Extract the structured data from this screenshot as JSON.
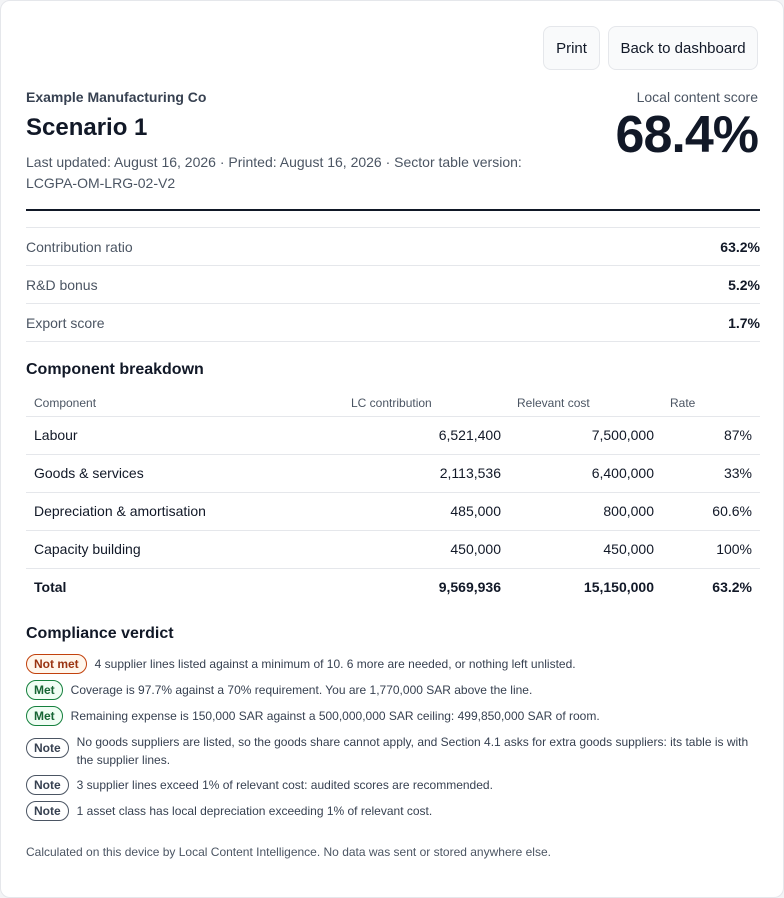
{
  "toolbar": {
    "print_label": "Print",
    "back_label": "Back to dashboard"
  },
  "header": {
    "organization": "Example Manufacturing Co",
    "title": "Scenario 1",
    "meta_line1": "Last updated: August 16, 2026 · Printed: August 16, 2026 · Sector table version:",
    "meta_line2": "LCGPA-OM-LRG-02-V2"
  },
  "score": {
    "label": "Local content score",
    "value": "68.4%"
  },
  "summary": [
    {
      "label": "Contribution ratio",
      "value": "63.2%"
    },
    {
      "label": "R&D bonus",
      "value": "5.2%"
    },
    {
      "label": "Export score",
      "value": "1.7%"
    }
  ],
  "breakdown": {
    "heading": "Component breakdown",
    "columns": [
      "Component",
      "LC contribution",
      "Relevant cost",
      "Rate"
    ],
    "rows": [
      [
        "Labour",
        "6,521,400",
        "7,500,000",
        "87%"
      ],
      [
        "Goods & services",
        "2,113,536",
        "6,400,000",
        "33%"
      ],
      [
        "Depreciation & amortisation",
        "485,000",
        "800,000",
        "60.6%"
      ],
      [
        "Capacity building",
        "450,000",
        "450,000",
        "100%"
      ]
    ],
    "total": [
      "Total",
      "9,569,936",
      "15,150,000",
      "63.2%"
    ]
  },
  "compliance": {
    "heading": "Compliance verdict",
    "items": [
      {
        "badge": "Not met",
        "text": "4 supplier lines listed against a minimum of 10. 6 more are needed, or nothing left unlisted."
      },
      {
        "badge": "Met",
        "text": "Coverage is 97.7% against a 70% requirement. You are 1,770,000 SAR above the line."
      },
      {
        "badge": "Met",
        "text": "Remaining expense is 150,000 SAR against a 500,000,000 SAR ceiling: 499,850,000 SAR of room."
      },
      {
        "badge": "Note",
        "text": "No goods suppliers are listed, so the goods share cannot apply, and Section 4.1 asks for extra goods suppliers: its table is with the supplier lines."
      },
      {
        "badge": "Note",
        "text": "3 supplier lines exceed 1% of relevant cost: audited scores are recommended."
      },
      {
        "badge": "Note",
        "text": "1 asset class has local depreciation exceeding 1% of relevant cost."
      }
    ]
  },
  "footer": "Calculated on this device by Local Content Intelligence. No data was sent or stored anywhere else."
}
